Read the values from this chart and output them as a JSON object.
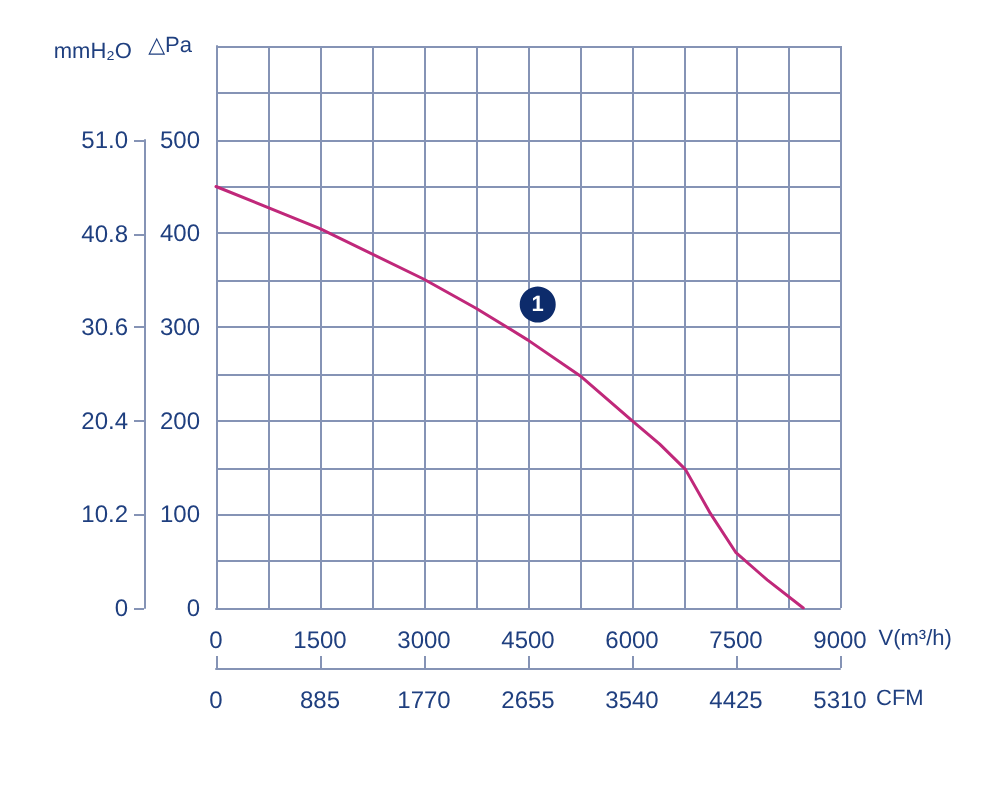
{
  "chart_data": {
    "type": "line",
    "xlabel": "V(m³/h)",
    "ylabel": "△Pa",
    "y2label": "mmH₂O",
    "x2label": "CFM",
    "x": [
      0,
      1500,
      3000,
      3750,
      4500,
      5250,
      6000,
      6400,
      6770,
      7130,
      7500,
      7950,
      8470
    ],
    "series": [
      {
        "color": "#c0287a",
        "values": [
          450,
          405,
          351,
          320,
          286,
          248,
          200,
          175,
          148,
          101,
          59,
          30,
          0
        ]
      }
    ],
    "annotations": [
      {
        "text": "1",
        "x": 4640,
        "y": 324
      }
    ],
    "xlim": [
      0,
      9000
    ],
    "xticks": [
      0,
      {
        "value": 750,
        "label": null
      },
      1500,
      {
        "value": 2250,
        "label": null
      },
      3000,
      {
        "value": 3750,
        "label": null
      },
      4500,
      {
        "value": 5250,
        "label": null
      },
      6000,
      {
        "value": 6750,
        "label": null
      },
      7500,
      {
        "value": 8250,
        "label": null
      },
      9000
    ],
    "x2lim": [
      0,
      5310
    ],
    "x2ticks": [
      0,
      885,
      1770,
      2655,
      3540,
      4425,
      5310
    ],
    "ylim": [
      0,
      600
    ],
    "yticks": [
      0,
      {
        "value": 50,
        "label": null
      },
      100,
      {
        "value": 150,
        "label": null
      },
      200,
      {
        "value": 250,
        "label": null
      },
      300,
      {
        "value": 350,
        "label": null
      },
      400,
      {
        "value": 450,
        "label": null
      },
      500,
      {
        "value": 550,
        "label": null
      },
      {
        "value": 600,
        "label": null
      }
    ],
    "y2lim": [
      0,
      51
    ],
    "y2ticks": [
      0,
      10.2,
      20.4,
      30.6,
      40.8,
      {
        "value": 51,
        "label": "51.0"
      }
    ],
    "grid": true,
    "marker": "none"
  }
}
